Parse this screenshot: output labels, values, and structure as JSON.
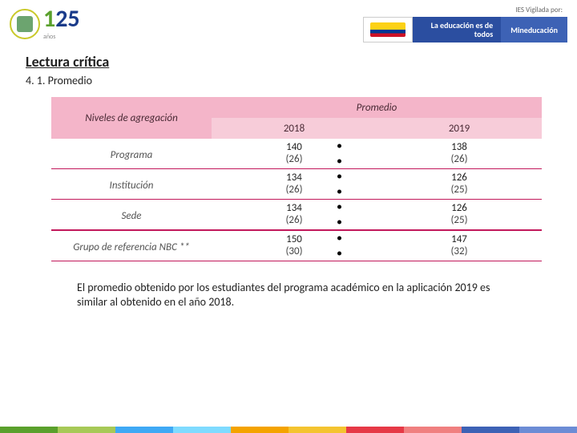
{
  "header": {
    "logo_number_a": "1",
    "logo_number_b": "25",
    "logo_sub": "años",
    "sup_label": "IES Vigilada por:",
    "slogan": "La educación es de todos",
    "ministry": "Mineducación"
  },
  "section": {
    "title": "Lectura crítica",
    "subtitle": "4. 1. Promedio"
  },
  "table": {
    "col_header_left": "Niveles de agregación",
    "col_header_span": "Promedio",
    "years": [
      "2018",
      "2019"
    ],
    "rows": [
      {
        "label": "Programa",
        "v": [
          "140",
          "138"
        ],
        "s": [
          "(26)",
          "(26)"
        ]
      },
      {
        "label": "Institución",
        "v": [
          "134",
          "126"
        ],
        "s": [
          "(26)",
          "(25)"
        ]
      },
      {
        "label": "Sede",
        "v": [
          "134",
          "126"
        ],
        "s": [
          "(26)",
          "(25)"
        ]
      },
      {
        "label": "Grupo de referencia NBC **",
        "v": [
          "150",
          "147"
        ],
        "s": [
          "(30)",
          "(32)"
        ]
      }
    ]
  },
  "paragraph": "El promedio obtenido por los estudiantes del programa académico en la aplicación 2019 es similar al obtenido en el año 2018.",
  "strip_colors": [
    "#5aa02c",
    "#a7c957",
    "#3fa9f5",
    "#7fdbff",
    "#f4a300",
    "#f4c430",
    "#e63946",
    "#f08080",
    "#3d62b5",
    "#6c8cd5"
  ]
}
